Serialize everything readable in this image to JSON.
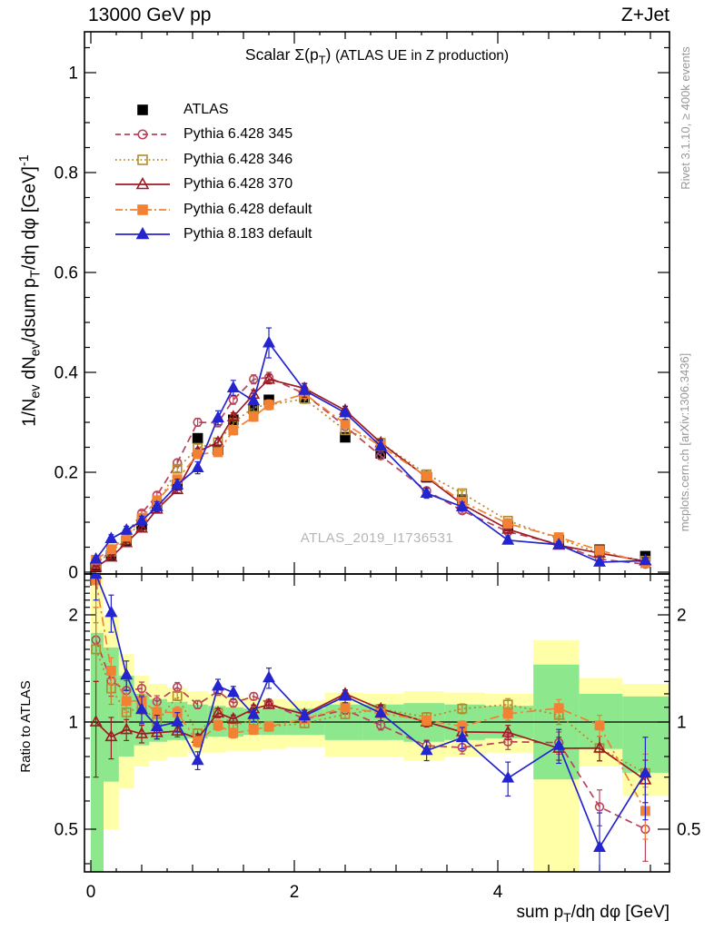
{
  "header": {
    "left": "13000 GeV pp",
    "right": "Z+Jet"
  },
  "title": {
    "pre": "Scalar Σ(p",
    "sub": "T",
    "post": ")",
    "note": "(ATLAS UE in Z production)"
  },
  "watermark": "ATLAS_2019_I1736531",
  "side_notes": {
    "rivet": "Rivet 3.1.10, ≥ 400k events",
    "mcplots": "mcplots.cern.ch [arXiv:1306.3436]"
  },
  "chart_data": {
    "type": "line",
    "title": "Scalar Σ(p_T) (ATLAS UE in Z production)",
    "x": [
      0.05,
      0.2,
      0.35,
      0.5,
      0.65,
      0.85,
      1.05,
      1.25,
      1.4,
      1.6,
      1.75,
      2.1,
      2.5,
      2.85,
      3.3,
      3.65,
      4.1,
      4.6,
      5.0,
      5.45
    ],
    "bin_edges": [
      0,
      0.125,
      0.275,
      0.425,
      0.575,
      0.75,
      0.95,
      1.15,
      1.325,
      1.5,
      1.675,
      1.925,
      2.3,
      2.675,
      3.075,
      3.475,
      3.875,
      4.35,
      4.8,
      5.225,
      5.69
    ],
    "series": [
      {
        "id": "atlas",
        "name": "ATLAS",
        "color": "#000000",
        "line": "none",
        "marker": "square",
        "filled": true,
        "is_reference": true,
        "values": [
          0.01,
          0.033,
          0.062,
          0.095,
          0.135,
          0.175,
          0.268,
          0.245,
          0.305,
          0.327,
          0.345,
          0.35,
          0.27,
          0.238,
          0.19,
          0.145,
          0.092,
          0.064,
          0.045,
          0.032
        ],
        "errors": [
          0.001,
          0.002,
          0.003,
          0.004,
          0.005,
          0.005,
          0.008,
          0.007,
          0.008,
          0.008,
          0.009,
          0.009,
          0.008,
          0.007,
          0.006,
          0.005,
          0.004,
          0.003,
          0.003,
          0.002
        ]
      },
      {
        "id": "pythia-6428-345",
        "name": "Pythia 6.428 345",
        "color": "#b8435a",
        "line": "dashed",
        "marker": "circle",
        "filled": false,
        "values": [
          0.017,
          0.043,
          0.076,
          0.118,
          0.154,
          0.219,
          0.3,
          0.299,
          0.345,
          0.386,
          0.39,
          0.357,
          0.292,
          0.233,
          0.163,
          0.123,
          0.081,
          0.056,
          0.026,
          0.016
        ],
        "errors": [
          0.004,
          0.004,
          0.005,
          0.005,
          0.006,
          0.007,
          0.008,
          0.008,
          0.009,
          0.009,
          0.01,
          0.009,
          0.008,
          0.007,
          0.006,
          0.005,
          0.004,
          0.004,
          0.003,
          0.003
        ]
      },
      {
        "id": "pythia-6428-346",
        "name": "Pythia 6.428 346",
        "color": "#b38a2a",
        "line": "dotted",
        "marker": "square",
        "filled": false,
        "values": [
          0.016,
          0.041,
          0.066,
          0.105,
          0.135,
          0.207,
          0.249,
          0.26,
          0.299,
          0.33,
          0.335,
          0.347,
          0.284,
          0.259,
          0.196,
          0.158,
          0.103,
          0.067,
          0.038,
          0.023
        ],
        "errors": [
          0.003,
          0.004,
          0.004,
          0.005,
          0.005,
          0.006,
          0.007,
          0.008,
          0.008,
          0.009,
          0.009,
          0.009,
          0.008,
          0.007,
          0.006,
          0.005,
          0.004,
          0.004,
          0.003,
          0.003
        ]
      },
      {
        "id": "pythia-6428-370",
        "name": "Pythia 6.428 370",
        "color": "#9e1a24",
        "line": "solid",
        "marker": "triangle",
        "filled": false,
        "values": [
          0.01,
          0.03,
          0.059,
          0.088,
          0.126,
          0.165,
          0.241,
          0.26,
          0.311,
          0.356,
          0.386,
          0.368,
          0.324,
          0.259,
          0.19,
          0.136,
          0.086,
          0.054,
          0.038,
          0.022
        ],
        "errors": [
          0.003,
          0.004,
          0.004,
          0.005,
          0.005,
          0.006,
          0.007,
          0.008,
          0.008,
          0.009,
          0.009,
          0.009,
          0.008,
          0.007,
          0.006,
          0.005,
          0.004,
          0.004,
          0.003,
          0.003
        ]
      },
      {
        "id": "pythia-6428-default",
        "name": "Pythia 6.428 default",
        "color": "#f28133",
        "line": "dashdot",
        "marker": "square",
        "filled": true,
        "values": [
          0.025,
          0.046,
          0.071,
          0.109,
          0.144,
          0.186,
          0.236,
          0.24,
          0.284,
          0.311,
          0.335,
          0.357,
          0.297,
          0.252,
          0.192,
          0.141,
          0.097,
          0.07,
          0.044,
          0.018
        ],
        "errors": [
          0.004,
          0.004,
          0.005,
          0.005,
          0.006,
          0.007,
          0.008,
          0.008,
          0.009,
          0.009,
          0.01,
          0.009,
          0.008,
          0.007,
          0.006,
          0.005,
          0.004,
          0.004,
          0.003,
          0.003
        ]
      },
      {
        "id": "pythia-8183-default",
        "name": "Pythia 8.183 default",
        "color": "#2525cf",
        "line": "solid",
        "marker": "triangle",
        "filled": true,
        "values": [
          0.026,
          0.067,
          0.084,
          0.103,
          0.131,
          0.175,
          0.209,
          0.309,
          0.369,
          0.343,
          0.459,
          0.364,
          0.319,
          0.252,
          0.158,
          0.131,
          0.064,
          0.055,
          0.02,
          0.023
        ],
        "errors": [
          0.004,
          0.008,
          0.008,
          0.009,
          0.01,
          0.011,
          0.012,
          0.014,
          0.015,
          0.015,
          0.03,
          0.014,
          0.013,
          0.012,
          0.01,
          0.009,
          0.007,
          0.006,
          0.005,
          0.006
        ]
      }
    ],
    "axes": {
      "x": {
        "range": [
          0,
          5.69
        ],
        "ticks": [
          0,
          2,
          4
        ],
        "tick_labels": [
          "0",
          "2",
          "4"
        ],
        "label": "sum p_T/dη dφ [GeV]",
        "label_parts": {
          "p1": "sum p",
          "s1": "T",
          "p2": "/dη dφ [GeV]"
        }
      },
      "y_main": {
        "range": [
          0,
          1.082
        ],
        "ticks": [
          1,
          0.8,
          0.6,
          0.4,
          0.2,
          0
        ],
        "tick_labels": [
          "1",
          "0.8",
          "0.6",
          "0.4",
          "0.2",
          "0"
        ],
        "label": "1/N_ev dN_ev/dsum p_T/dη dφ [GeV]^-1",
        "label_parts": {
          "p1": "1/N",
          "s1": "ev",
          "p2": " dN",
          "s2": "ev",
          "p3": "/dsum p",
          "s3": "T",
          "p4": "/dη dφ  [GeV]",
          "sup": "-1"
        }
      },
      "y_ratio": {
        "scale": "log",
        "range": [
          0.38,
          2.6
        ],
        "ticks": [
          2,
          1,
          0.5
        ],
        "tick_labels": [
          "2",
          "1",
          "0.5"
        ],
        "label": "Ratio to ATLAS"
      }
    },
    "ratio_bands": {
      "yellow": {
        "color": "#ffffa8",
        "lo": [
          0.3,
          0.5,
          0.65,
          0.75,
          0.78,
          0.8,
          0.82,
          0.82,
          0.83,
          0.83,
          0.84,
          0.85,
          0.8,
          0.8,
          0.78,
          0.8,
          0.82,
          0.33,
          0.75,
          0.62
        ],
        "hi": [
          2.6,
          2.0,
          1.55,
          1.35,
          1.28,
          1.25,
          1.22,
          1.2,
          1.18,
          1.17,
          1.16,
          1.15,
          1.21,
          1.2,
          1.22,
          1.21,
          1.2,
          1.7,
          1.33,
          1.28
        ]
      },
      "green": {
        "color": "#8de88d",
        "lo": [
          0.3,
          0.68,
          0.8,
          0.86,
          0.88,
          0.89,
          0.9,
          0.91,
          0.91,
          0.92,
          0.92,
          0.92,
          0.89,
          0.89,
          0.88,
          0.89,
          0.9,
          0.69,
          0.84,
          0.72
        ],
        "hi": [
          1.78,
          1.62,
          1.35,
          1.2,
          1.16,
          1.14,
          1.12,
          1.11,
          1.1,
          1.09,
          1.09,
          1.09,
          1.12,
          1.12,
          1.13,
          1.12,
          1.11,
          1.45,
          1.2,
          1.18
        ]
      }
    }
  }
}
